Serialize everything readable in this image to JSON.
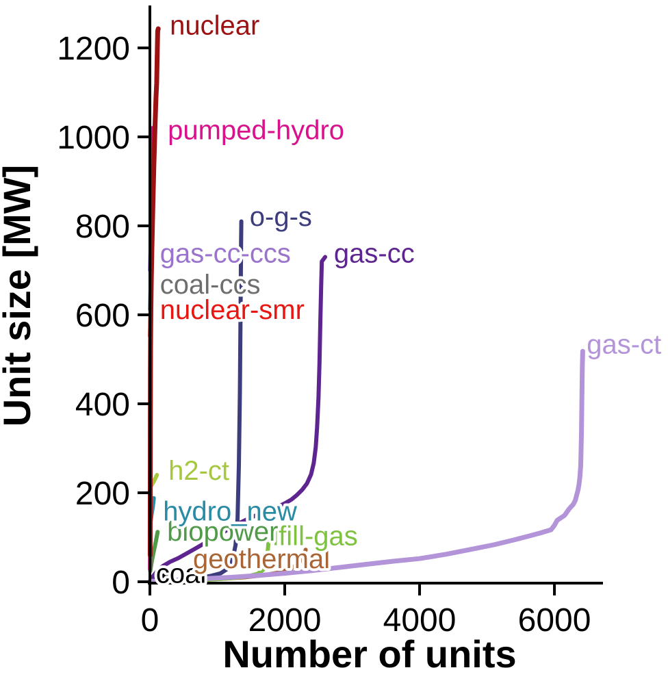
{
  "figure": {
    "background": "#ffffff",
    "axis_color": "#000000"
  },
  "chart_data": {
    "type": "line",
    "title": "",
    "xlabel": "Number of units",
    "ylabel": "Unit size [MW]",
    "xlim": [
      0,
      6710
    ],
    "ylim": [
      0,
      1300
    ],
    "xticks": [
      0,
      2000,
      4000,
      6000
    ],
    "yticks": [
      0,
      200,
      400,
      600,
      800,
      1000,
      1200
    ],
    "grid": false,
    "legend_position": "inline-labels",
    "series": [
      {
        "name": "gas-cc-ccs",
        "color": "#9a73cc",
        "width": 6,
        "points": [
          [
            2,
            700
          ],
          [
            7,
            728
          ],
          [
            12,
            752
          ]
        ],
        "label": {
          "text": "gas-cc-ccs",
          "x": 150,
          "y": 738
        }
      },
      {
        "name": "coal-ccs",
        "color": "#6e6e6e",
        "width": 6,
        "points": [
          [
            3,
            612
          ],
          [
            8,
            645
          ],
          [
            13,
            675
          ]
        ],
        "label": {
          "text": "coal-ccs",
          "x": 150,
          "y": 668
        }
      },
      {
        "name": "nuclear-smr",
        "color": "#e81511",
        "width": 6,
        "points": [
          [
            2,
            552
          ],
          [
            7,
            585
          ],
          [
            12,
            615
          ]
        ],
        "label": {
          "text": "nuclear-smr",
          "x": 150,
          "y": 611
        }
      },
      {
        "name": "coal",
        "color": "#000000",
        "width": 6,
        "points": [
          [
            5,
            2
          ],
          [
            90,
            7
          ],
          [
            170,
            12
          ],
          [
            250,
            16
          ],
          [
            310,
            19
          ]
        ],
        "label": {
          "text": "coal",
          "x": 90,
          "y": 18
        }
      },
      {
        "name": "geothermal",
        "color": "#aa6535",
        "width": 6,
        "points": [
          [
            10,
            1
          ],
          [
            500,
            3
          ],
          [
            1000,
            6
          ],
          [
            1400,
            10
          ],
          [
            1700,
            15
          ],
          [
            1950,
            22
          ],
          [
            2100,
            30
          ],
          [
            2200,
            41
          ],
          [
            2270,
            54
          ],
          [
            2310,
            72
          ]
        ],
        "label": {
          "text": "geothermal",
          "x": 640,
          "y": 51
        }
      },
      {
        "name": "lfill-gas",
        "color": "#7ec23f",
        "width": 6,
        "points": [
          [
            10,
            1
          ],
          [
            500,
            3
          ],
          [
            900,
            5
          ],
          [
            1200,
            8
          ],
          [
            1450,
            12
          ],
          [
            1600,
            18
          ],
          [
            1680,
            27
          ],
          [
            1720,
            44
          ],
          [
            1745,
            64
          ],
          [
            1757,
            86
          ]
        ],
        "label": {
          "text": "lfill-gas",
          "x": 1820,
          "y": 102
        }
      },
      {
        "name": "biopower",
        "color": "#519a4a",
        "width": 6,
        "points": [
          [
            5,
            24
          ],
          [
            30,
            48
          ],
          [
            60,
            70
          ],
          [
            90,
            92
          ],
          [
            115,
            112
          ]
        ],
        "label": {
          "text": "biopower",
          "x": 255,
          "y": 112
        }
      },
      {
        "name": "hydro_new",
        "color": "#2a8ba4",
        "width": 6,
        "points": [
          [
            3,
            128
          ],
          [
            25,
            152
          ],
          [
            45,
            170
          ],
          [
            58,
            188
          ]
        ],
        "label": {
          "text": "hydro_new",
          "x": 195,
          "y": 158
        }
      },
      {
        "name": "h2-ct",
        "color": "#a5c83e",
        "width": 6,
        "points": [
          [
            5,
            212
          ],
          [
            60,
            226
          ],
          [
            105,
            240
          ]
        ],
        "label": {
          "text": "h2-ct",
          "x": 275,
          "y": 249
        }
      },
      {
        "name": "o-g-s",
        "color": "#3d3d7d",
        "width": 6,
        "points": [
          [
            10,
            1
          ],
          [
            300,
            3
          ],
          [
            500,
            5
          ],
          [
            700,
            8
          ],
          [
            900,
            13
          ],
          [
            1050,
            19
          ],
          [
            1150,
            29
          ],
          [
            1220,
            46
          ],
          [
            1270,
            82
          ],
          [
            1300,
            142
          ],
          [
            1320,
            262
          ],
          [
            1335,
            425
          ],
          [
            1345,
            610
          ],
          [
            1352,
            755
          ],
          [
            1356,
            810
          ]
        ],
        "label": {
          "text": "o-g-s",
          "x": 1480,
          "y": 820
        }
      },
      {
        "name": "gas-cc",
        "color": "#5e2591",
        "width": 6,
        "points": [
          [
            5,
            3
          ],
          [
            60,
            15
          ],
          [
            120,
            26
          ],
          [
            200,
            36
          ],
          [
            300,
            45
          ],
          [
            420,
            53
          ],
          [
            550,
            64
          ],
          [
            700,
            77
          ],
          [
            850,
            90
          ],
          [
            1000,
            103
          ],
          [
            1150,
            117
          ],
          [
            1300,
            130
          ],
          [
            1450,
            141
          ],
          [
            1600,
            151
          ],
          [
            1750,
            160
          ],
          [
            1900,
            169
          ],
          [
            2000,
            176
          ],
          [
            2100,
            185
          ],
          [
            2180,
            195
          ],
          [
            2260,
            207
          ],
          [
            2330,
            221
          ],
          [
            2390,
            241
          ],
          [
            2430,
            267
          ],
          [
            2460,
            302
          ],
          [
            2480,
            347
          ],
          [
            2500,
            412
          ],
          [
            2515,
            492
          ],
          [
            2528,
            582
          ],
          [
            2540,
            662
          ],
          [
            2550,
            720
          ],
          [
            2600,
            730
          ]
        ],
        "label": {
          "text": "gas-cc",
          "x": 2730,
          "y": 738
        }
      },
      {
        "name": "pumped-hydro",
        "color": "#d9118c",
        "width": 6,
        "points": [
          [
            2,
            28
          ],
          [
            5,
            120
          ],
          [
            8,
            262
          ],
          [
            12,
            420
          ],
          [
            16,
            562
          ],
          [
            20,
            684
          ],
          [
            25,
            805
          ],
          [
            30,
            902
          ],
          [
            35,
            982
          ],
          [
            40,
            1020
          ]
        ],
        "label": {
          "text": "pumped-hydro",
          "x": 265,
          "y": 1015
        }
      },
      {
        "name": "nuclear",
        "color": "#9c1213",
        "width": 7,
        "points": [
          [
            4,
            60
          ],
          [
            6,
            300
          ],
          [
            8,
            470
          ],
          [
            12,
            580
          ],
          [
            20,
            672
          ],
          [
            30,
            752
          ],
          [
            45,
            848
          ],
          [
            60,
            940
          ],
          [
            75,
            1020
          ],
          [
            90,
            1088
          ],
          [
            100,
            1120
          ],
          [
            105,
            1152
          ],
          [
            110,
            1192
          ],
          [
            116,
            1238
          ],
          [
            124,
            1243
          ]
        ],
        "label": {
          "text": "nuclear",
          "x": 295,
          "y": 1250
        }
      },
      {
        "name": "gas-ct",
        "color": "#b394d9",
        "width": 7,
        "points": [
          [
            10,
            1
          ],
          [
            400,
            4
          ],
          [
            800,
            7
          ],
          [
            1200,
            10
          ],
          [
            1600,
            14
          ],
          [
            2000,
            19
          ],
          [
            2400,
            25
          ],
          [
            2800,
            32
          ],
          [
            3200,
            39
          ],
          [
            3600,
            46
          ],
          [
            4000,
            52
          ],
          [
            4400,
            62
          ],
          [
            4800,
            74
          ],
          [
            5100,
            83
          ],
          [
            5400,
            94
          ],
          [
            5600,
            102
          ],
          [
            5800,
            110
          ],
          [
            5950,
            117
          ],
          [
            6000,
            127
          ],
          [
            6040,
            138
          ],
          [
            6080,
            142
          ],
          [
            6150,
            149
          ],
          [
            6220,
            164
          ],
          [
            6280,
            174
          ],
          [
            6310,
            183
          ],
          [
            6330,
            195
          ],
          [
            6350,
            206
          ],
          [
            6365,
            219
          ],
          [
            6378,
            236
          ],
          [
            6390,
            262
          ],
          [
            6400,
            330
          ],
          [
            6408,
            424
          ],
          [
            6414,
            482
          ],
          [
            6420,
            518
          ]
        ],
        "label": {
          "text": "gas-ct",
          "x": 6480,
          "y": 533
        }
      }
    ]
  }
}
